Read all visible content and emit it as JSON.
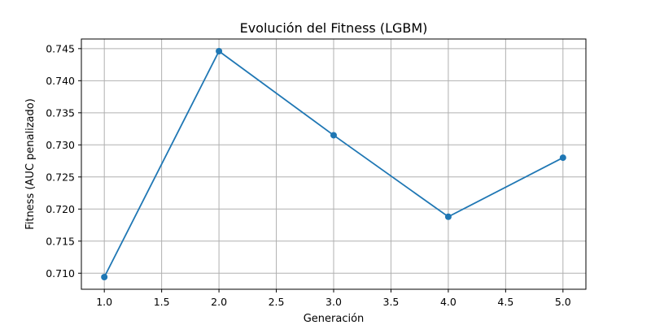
{
  "chart_data": {
    "type": "line",
    "title": "Evolución del Fitness (LGBM)",
    "xlabel": "Generación",
    "ylabel": "Fitness (AUC penalizado)",
    "xlim": [
      0.8,
      5.2
    ],
    "ylim": [
      0.7075,
      0.7465
    ],
    "x_ticks": [
      1.0,
      1.5,
      2.0,
      2.5,
      3.0,
      3.5,
      4.0,
      4.5,
      5.0
    ],
    "x_tick_labels": [
      "1.0",
      "1.5",
      "2.0",
      "2.5",
      "3.0",
      "3.5",
      "4.0",
      "4.5",
      "5.0"
    ],
    "y_ticks": [
      0.71,
      0.715,
      0.72,
      0.725,
      0.73,
      0.735,
      0.74,
      0.745
    ],
    "y_tick_labels": [
      "0.710",
      "0.715",
      "0.720",
      "0.725",
      "0.730",
      "0.735",
      "0.740",
      "0.745"
    ],
    "grid": true,
    "series": [
      {
        "color": "#1f77b4",
        "marker": "circle",
        "x": [
          1,
          2,
          3,
          4,
          5
        ],
        "y": [
          0.7094,
          0.7446,
          0.7315,
          0.7188,
          0.728
        ]
      }
    ]
  }
}
